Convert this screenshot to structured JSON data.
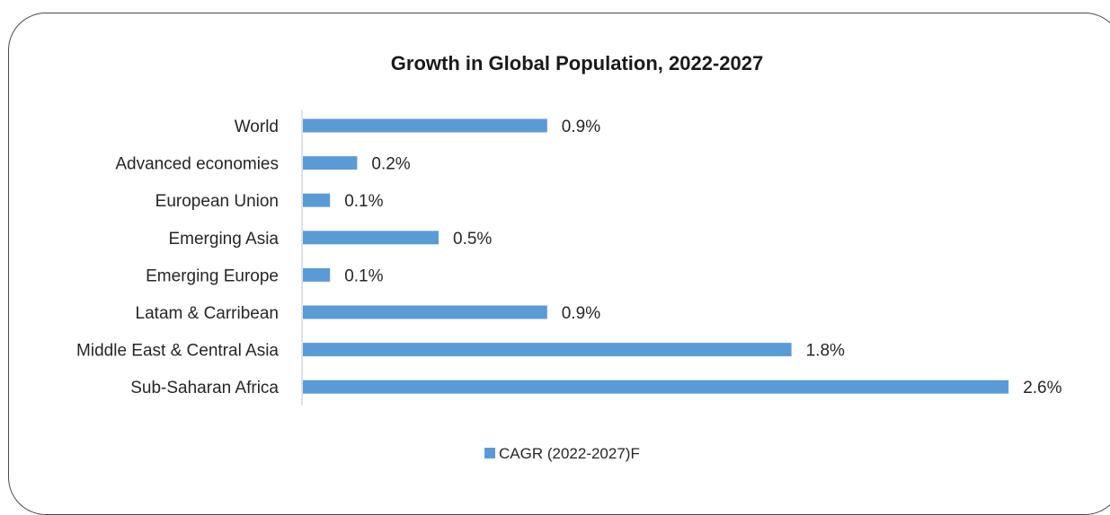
{
  "chart_data": {
    "type": "bar",
    "orientation": "horizontal",
    "title": "Growth in Global Population, 2022-2027",
    "categories": [
      "World",
      "Advanced economies",
      "European Union",
      "Emerging Asia",
      "Emerging Europe",
      "Latam & Carribean",
      "Middle East & Central Asia",
      "Sub-Saharan Africa"
    ],
    "series": [
      {
        "name": "CAGR (2022-2027)F",
        "values": [
          0.9,
          0.2,
          0.1,
          0.5,
          0.1,
          0.9,
          1.8,
          2.6
        ],
        "labels": [
          "0.9%",
          "0.2%",
          "0.1%",
          "0.5%",
          "0.1%",
          "0.9%",
          "1.8%",
          "2.6%"
        ],
        "color": "#5b9bd5"
      }
    ],
    "xlabel": "",
    "ylabel": "",
    "grid": false,
    "legend": "bottom-center"
  }
}
